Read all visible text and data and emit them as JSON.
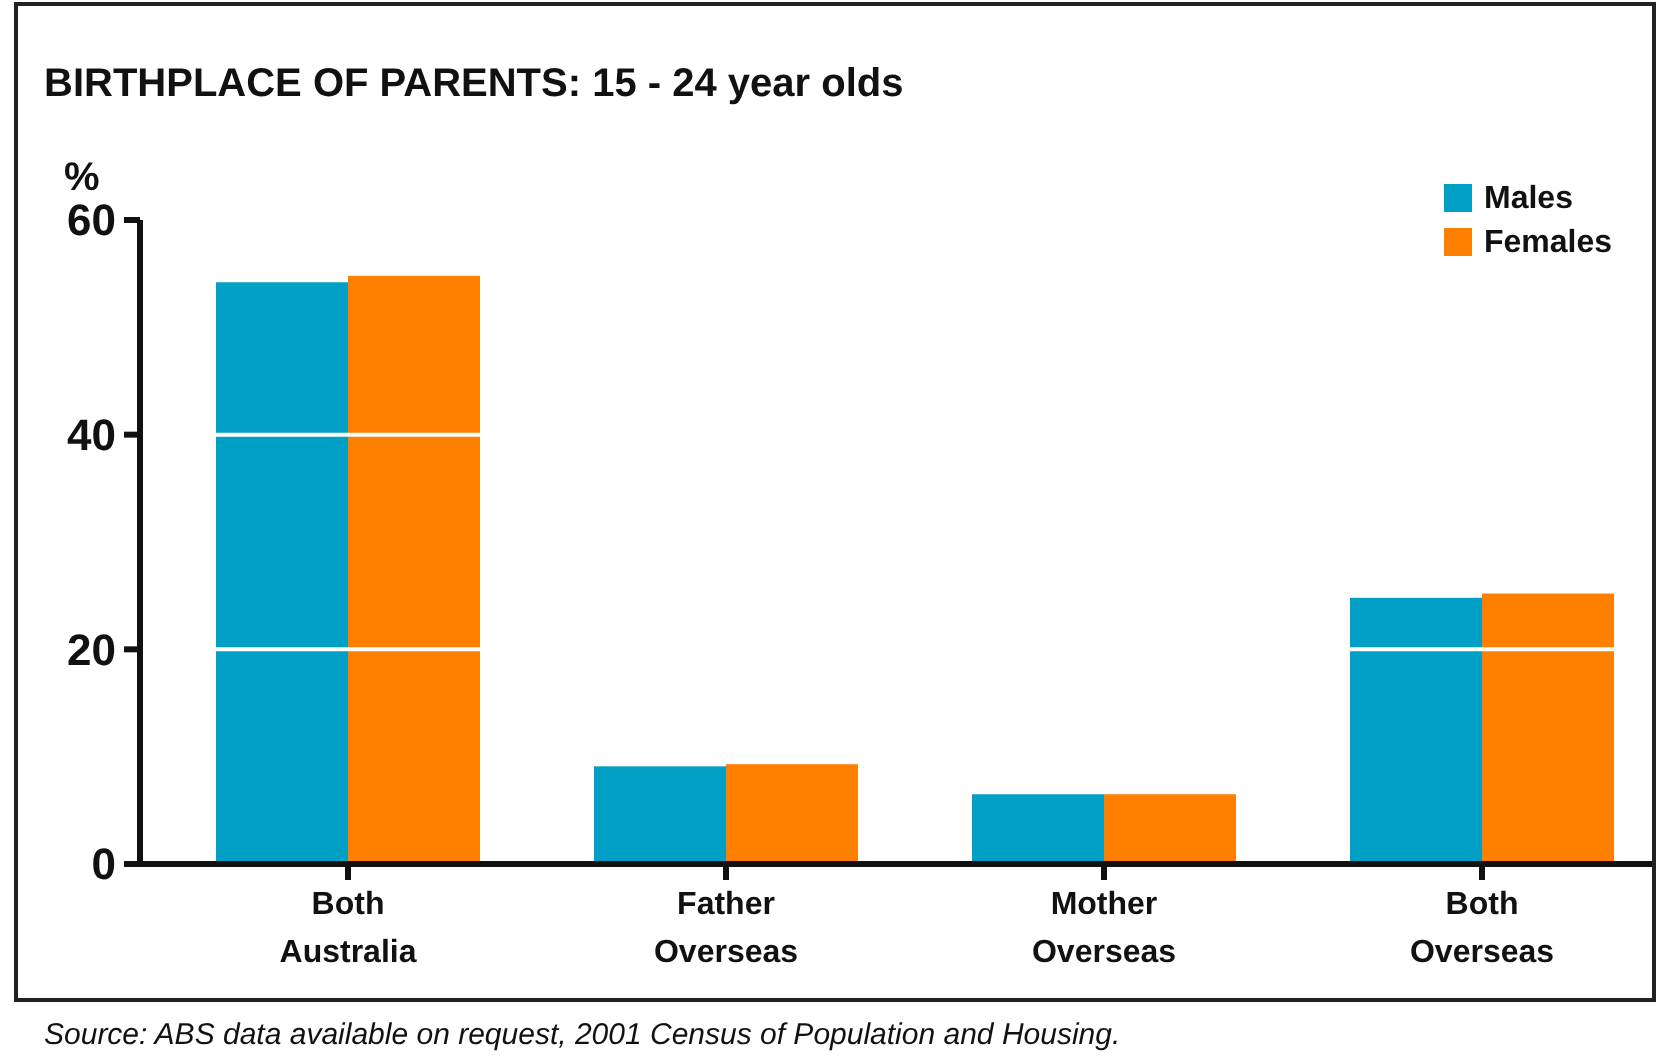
{
  "chart_data": {
    "type": "bar",
    "title": "BIRTHPLACE OF PARENTS:  15 - 24 year olds",
    "ylabel": "%",
    "categories": [
      "Both\nAustralia",
      "Father\nOverseas",
      "Mother\nOverseas",
      "Both\nOverseas"
    ],
    "series": [
      {
        "name": "Males",
        "color": "#00a0c6",
        "values": [
          54.2,
          9.1,
          6.5,
          24.8
        ]
      },
      {
        "name": "Females",
        "color": "#ff8000",
        "values": [
          54.8,
          9.3,
          6.5,
          25.2
        ]
      }
    ],
    "ylim": [
      0,
      60
    ],
    "yticks": [
      0,
      20,
      40,
      60
    ],
    "grid": "y",
    "legend": "top right",
    "annotations": [
      "Source:  ABS data available on request,  2001 Census of Population and Housing."
    ]
  }
}
